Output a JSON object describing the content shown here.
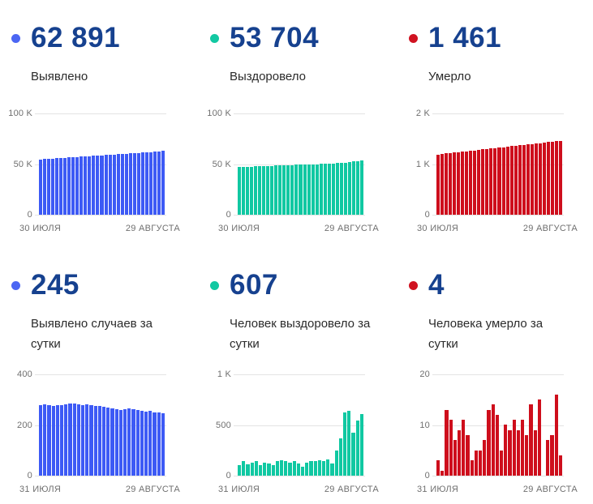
{
  "colors": {
    "stat_number": "#16418f",
    "axis_text": "#6f6f6f",
    "gridline": "#e4e4e4",
    "label_text": "#2b2b2b",
    "blue": "#3d5af5",
    "teal": "#10c8a2",
    "red": "#ce0e1c"
  },
  "chart_data": [
    {
      "id": "confirmed-total",
      "type": "bar",
      "stat_value": "62 891",
      "stat_label": "Выявлено",
      "color": "#3d5af5",
      "dot_color": "#4b66f3",
      "ymax": 100000,
      "ylim": [
        0,
        100000
      ],
      "yticks": [
        "100 K",
        "50 K",
        "0"
      ],
      "xlabels": [
        "30 ИЮЛЯ",
        "29 АВГУСТА"
      ],
      "values": [
        54500,
        54800,
        55000,
        55300,
        55600,
        55900,
        56100,
        56400,
        56700,
        57000,
        57200,
        57500,
        57800,
        58000,
        58300,
        58600,
        58900,
        59100,
        59400,
        59700,
        59900,
        60200,
        60500,
        60700,
        61000,
        61300,
        61500,
        61800,
        62100,
        62500,
        62891
      ]
    },
    {
      "id": "recovered-total",
      "type": "bar",
      "stat_value": "53 704",
      "stat_label": "Выздоровело",
      "color": "#10c8a2",
      "dot_color": "#12c8a2",
      "ymax": 100000,
      "ylim": [
        0,
        100000
      ],
      "yticks": [
        "100 K",
        "50 K",
        "0"
      ],
      "xlabels": [
        "30 ИЮЛЯ",
        "29 АВГУСТА"
      ],
      "values": [
        47000,
        47200,
        47400,
        47500,
        47700,
        47800,
        48000,
        48100,
        48300,
        48400,
        48600,
        48700,
        48900,
        49000,
        49200,
        49300,
        49500,
        49600,
        49800,
        49900,
        50100,
        50300,
        50500,
        50700,
        50900,
        51200,
        51500,
        51900,
        52400,
        53100,
        53704
      ]
    },
    {
      "id": "deaths-total",
      "type": "bar",
      "stat_value": "1 461",
      "stat_label": "Умерло",
      "color": "#ce0e1c",
      "dot_color": "#d01321",
      "ymax": 2000,
      "ylim": [
        0,
        2000
      ],
      "yticks": [
        "2 K",
        "1 K",
        "0"
      ],
      "xlabels": [
        "30 ИЮЛЯ",
        "29 АВГУСТА"
      ],
      "values": [
        1190,
        1199,
        1208,
        1217,
        1226,
        1235,
        1244,
        1253,
        1262,
        1271,
        1280,
        1289,
        1298,
        1307,
        1316,
        1325,
        1334,
        1343,
        1352,
        1361,
        1370,
        1379,
        1388,
        1397,
        1406,
        1415,
        1424,
        1433,
        1442,
        1452,
        1461
      ]
    },
    {
      "id": "confirmed-daily",
      "type": "bar",
      "stat_value": "245",
      "stat_label": "Выявлено случаев за сутки",
      "color": "#3d5af5",
      "dot_color": "#4b66f3",
      "ymax": 400,
      "ylim": [
        0,
        400
      ],
      "yticks": [
        "400",
        "200",
        "0"
      ],
      "xlabels": [
        "31 ИЮЛЯ",
        "29 АВГУСТА"
      ],
      "values": [
        278,
        281,
        279,
        276,
        278,
        277,
        281,
        284,
        285,
        282,
        279,
        281,
        278,
        276,
        274,
        271,
        268,
        265,
        262,
        260,
        262,
        264,
        262,
        259,
        256,
        252,
        255,
        249,
        251,
        245
      ]
    },
    {
      "id": "recovered-daily",
      "type": "bar",
      "stat_value": "607",
      "stat_label": "Человек выздоровело за сутки",
      "color": "#10c8a2",
      "dot_color": "#12c8a2",
      "ymax": 1000,
      "ylim": [
        0,
        1000
      ],
      "yticks": [
        "1 K",
        "500",
        "0"
      ],
      "xlabels": [
        "31 ИЮЛЯ",
        "29 АВГУСТА"
      ],
      "values": [
        100,
        140,
        110,
        125,
        140,
        105,
        130,
        120,
        100,
        140,
        150,
        140,
        130,
        140,
        120,
        90,
        130,
        140,
        145,
        150,
        140,
        160,
        120,
        250,
        370,
        620,
        640,
        420,
        540,
        607
      ]
    },
    {
      "id": "deaths-daily",
      "type": "bar",
      "stat_value": "4",
      "stat_label": "Человека умерло за сутки",
      "color": "#ce0e1c",
      "dot_color": "#d01321",
      "ymax": 20,
      "ylim": [
        0,
        20
      ],
      "yticks": [
        "20",
        "10",
        "0"
      ],
      "xlabels": [
        "31 ИЮЛЯ",
        "29 АВГУСТА"
      ],
      "values": [
        3,
        1,
        13,
        11,
        7,
        9,
        11,
        8,
        3,
        5,
        5,
        7,
        13,
        14,
        12,
        5,
        10,
        9,
        11,
        9,
        11,
        8,
        14,
        9,
        15,
        0,
        7,
        8,
        16,
        4
      ]
    }
  ]
}
